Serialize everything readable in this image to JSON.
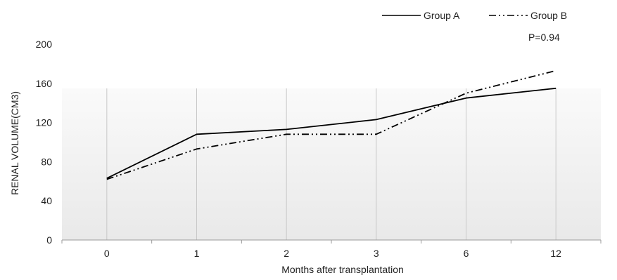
{
  "chart_data": {
    "type": "line",
    "categories": [
      "0",
      "1",
      "2",
      "3",
      "6",
      "12"
    ],
    "series": [
      {
        "name": "Group A",
        "values": [
          63,
          108,
          113,
          123,
          145,
          155
        ],
        "line_style": "solid"
      },
      {
        "name": "Group B",
        "values": [
          62,
          93,
          108,
          108,
          150,
          173
        ],
        "line_style": "dash-dot-dot"
      }
    ],
    "title": "",
    "xlabel": "Months after transplantation",
    "ylabel": "RENAL VOLUME(CM3)",
    "ylim": [
      0,
      200
    ],
    "yticks": [
      "0",
      "40",
      "80",
      "120",
      "160",
      "200"
    ],
    "grid": "vertical lines at categories",
    "legend_placement": "top-right",
    "annotation": "P=0.94",
    "colors": {
      "line": "#000000",
      "grid": "#c8c8c8",
      "axis": "#9a9a9a",
      "band_top": "#fafafa",
      "band_bottom": "#e9e9e9"
    }
  }
}
